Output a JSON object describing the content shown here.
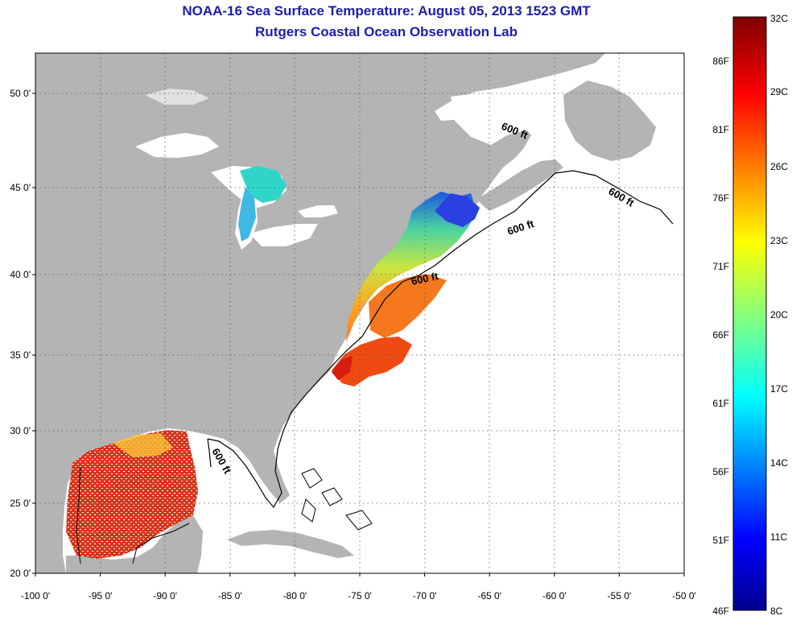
{
  "header": {
    "title": "NOAA-16 Sea Surface Temperature:  August 05, 2013 1523 GMT",
    "subtitle": "Rutgers Coastal Ocean Observation Lab"
  },
  "map": {
    "lat_ticks": [
      {
        "value": 50,
        "label": "50 0'"
      },
      {
        "value": 45,
        "label": "45 0'"
      },
      {
        "value": 40,
        "label": "40 0'"
      },
      {
        "value": 35,
        "label": "35 0'"
      },
      {
        "value": 30,
        "label": "30 0'"
      },
      {
        "value": 25,
        "label": "25 0'"
      },
      {
        "value": 20,
        "label": "20 0'"
      }
    ],
    "lon_ticks": [
      {
        "value": -100,
        "label": "-100 0'"
      },
      {
        "value": -95,
        "label": "-95 0'"
      },
      {
        "value": -90,
        "label": "-90 0'"
      },
      {
        "value": -85,
        "label": "-85 0'"
      },
      {
        "value": -80,
        "label": "-80 0'"
      },
      {
        "value": -75,
        "label": "-75 0'"
      },
      {
        "value": -70,
        "label": "-70 0'"
      },
      {
        "value": -65,
        "label": "-65 0'"
      },
      {
        "value": -60,
        "label": "-60 0'"
      },
      {
        "value": -55,
        "label": "-55 0'"
      },
      {
        "value": -50,
        "label": "-50 0'"
      }
    ],
    "contour_labels": [
      "600 ft",
      "600 ft",
      "600 ft",
      "600 ft",
      "600 ft"
    ],
    "land_color": "#b4b4b4",
    "grid": "dotted"
  },
  "colorbar": {
    "left_labels": [
      "86F",
      "81F",
      "76F",
      "71F",
      "66F",
      "61F",
      "56F",
      "51F",
      "46F"
    ],
    "right_labels": [
      "32C",
      "29C",
      "26C",
      "23C",
      "20C",
      "17C",
      "14C",
      "11C",
      "8C"
    ],
    "colormap": "jet"
  }
}
